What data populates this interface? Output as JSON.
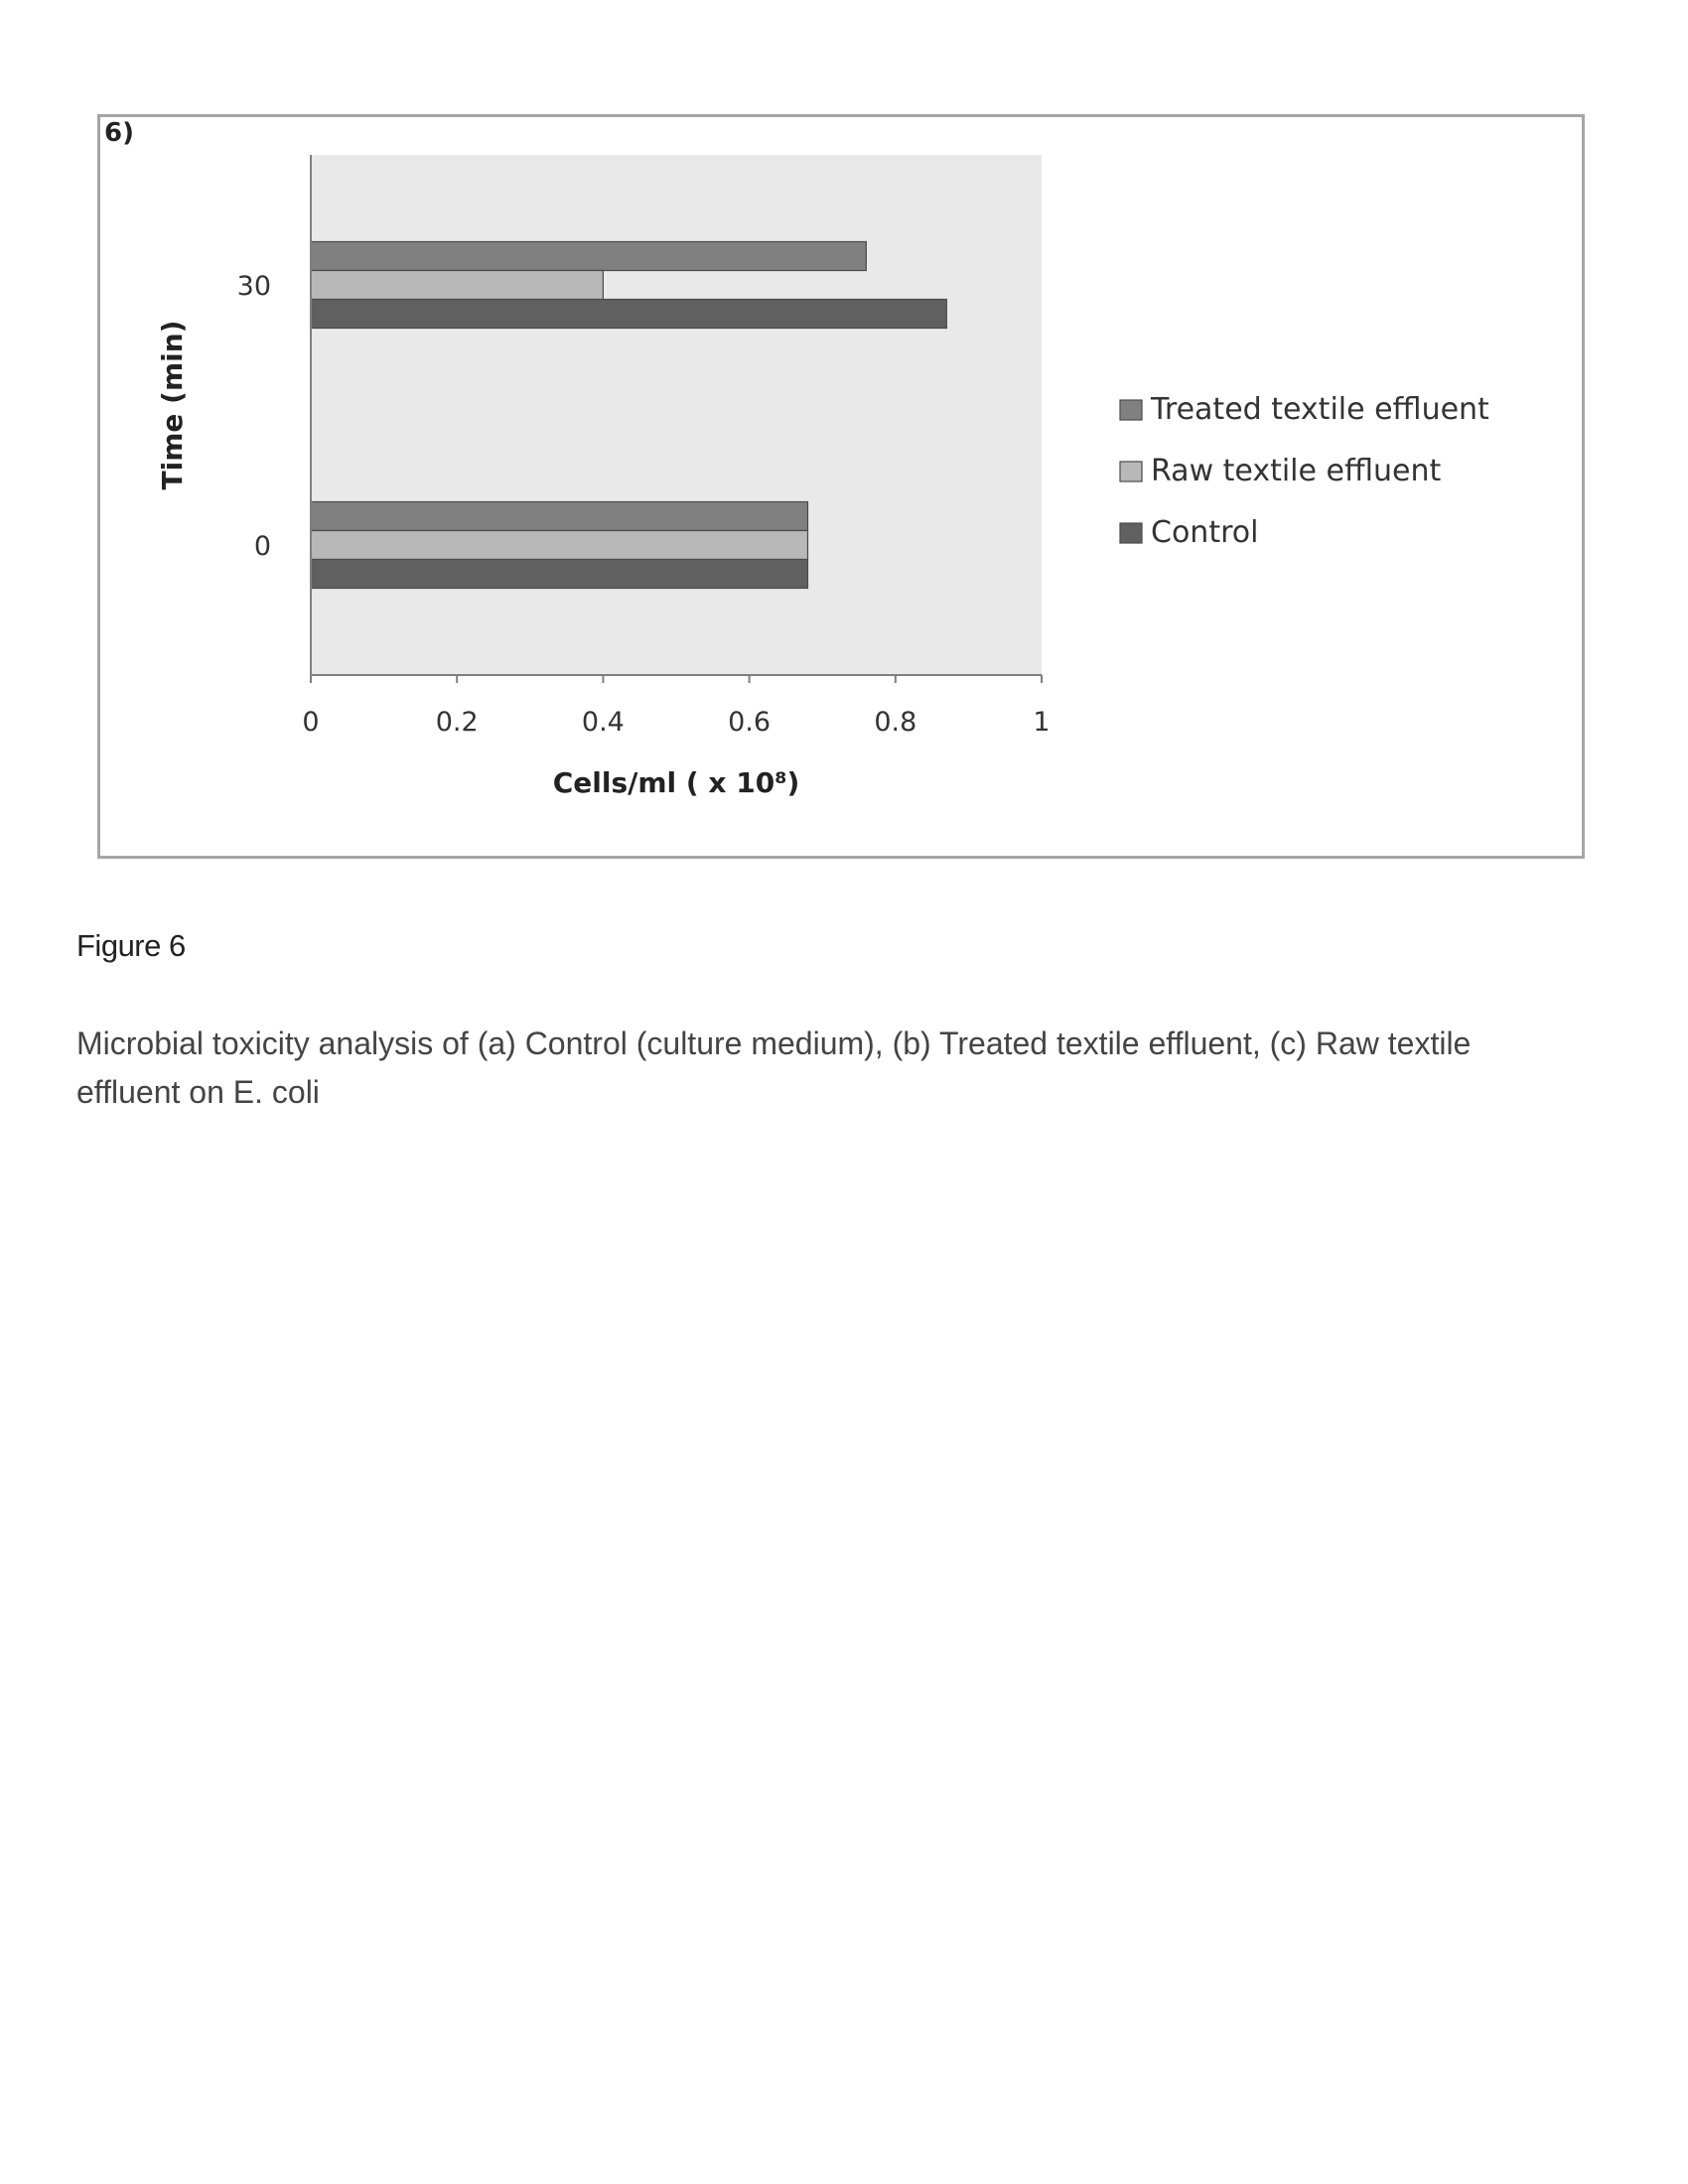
{
  "panel_label": "6)",
  "chart_data": {
    "type": "bar",
    "orientation": "horizontal",
    "title": "",
    "xlabel": "Cells/ml ( x 10⁸)",
    "ylabel": "Time (min)",
    "categories": [
      "0",
      "30"
    ],
    "series": [
      {
        "name": "Treated textile effluent",
        "values": [
          0.68,
          0.76
        ],
        "color": "#808080"
      },
      {
        "name": "Raw textile effluent",
        "values": [
          0.68,
          0.4
        ],
        "color": "#b8b8b8"
      },
      {
        "name": "Control",
        "values": [
          0.68,
          0.87
        ],
        "color": "#606060"
      }
    ],
    "xlim": [
      0,
      1
    ],
    "xticks": [
      "0",
      "0.2",
      "0.4",
      "0.6",
      "0.8",
      "1"
    ],
    "grid": false,
    "legend_position": "right",
    "plot_background": "#e9e9e9"
  },
  "figure": {
    "label": "Figure 6",
    "caption": "Microbial toxicity analysis of (a) Control (culture medium), (b) Treated textile effluent, (c) Raw textile effluent on E. coli"
  }
}
